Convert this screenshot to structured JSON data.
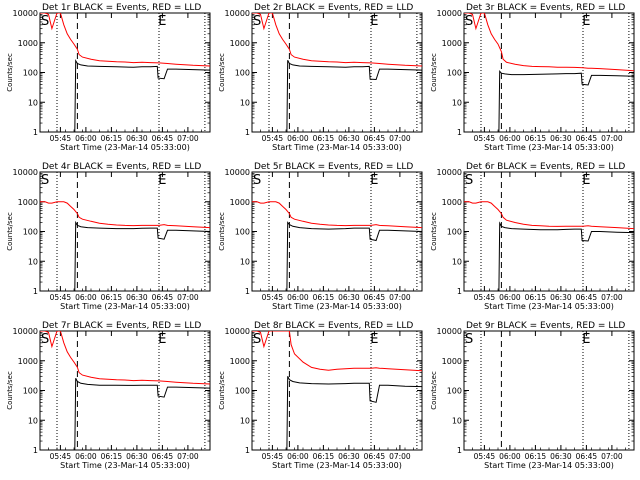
{
  "figure": {
    "tick_labels_x": [
      "05:45",
      "06:00",
      "06:15",
      "06:30",
      "06:45",
      "07:00"
    ],
    "tick_labels_y": [
      "1",
      "10",
      "100",
      "1000",
      "10000"
    ],
    "y_label": "Counts/sec",
    "x_label": "Start Time (23-Mar-14 05:33:00)",
    "marker_start": "S",
    "marker_end": "E",
    "colors": {
      "events": "#000000",
      "lld": "#ff0000",
      "axes": "#000000"
    }
  },
  "chart_data": [
    {
      "type": "line",
      "title": "Det 1r BLACK = Events, RED = LLD",
      "xlabel": "Start Time (23-Mar-14 05:33:00)",
      "ylabel": "Counts/sec",
      "x_unit": "minutes after 05:33:00",
      "yscale": "log",
      "xlim": [
        0,
        100
      ],
      "ylim": [
        1,
        10000
      ],
      "vlines": {
        "dotted": [
          10,
          70,
          97
        ],
        "dashed": [
          22
        ]
      },
      "markers": {
        "S": 0,
        "E": 69
      },
      "series": [
        {
          "name": "Events",
          "color": "#000000",
          "x": [
            20.5,
            21,
            22,
            24,
            28,
            35,
            45,
            55,
            60,
            65,
            69,
            69.5,
            73,
            75,
            80,
            90,
            100
          ],
          "y": [
            1,
            250,
            200,
            180,
            165,
            160,
            155,
            150,
            155,
            155,
            160,
            65,
            62,
            130,
            130,
            125,
            120
          ]
        },
        {
          "name": "LLD",
          "color": "#ff0000",
          "x": [
            0,
            3,
            5,
            7,
            10,
            12,
            14,
            16,
            18,
            20,
            22,
            23,
            25,
            30,
            35,
            40,
            45,
            50,
            55,
            60,
            65,
            70,
            73,
            75,
            80,
            90,
            100
          ],
          "y": [
            10000,
            10000,
            9000,
            3000,
            10000,
            10000,
            4000,
            2000,
            1300,
            900,
            600,
            400,
            330,
            280,
            250,
            240,
            230,
            225,
            215,
            220,
            215,
            210,
            205,
            200,
            190,
            175,
            165
          ]
        }
      ]
    },
    {
      "type": "line",
      "title": "Det 2r BLACK = Events, RED = LLD",
      "xlabel": "Start Time (23-Mar-14 05:33:00)",
      "ylabel": "Counts/sec",
      "x_unit": "minutes after 05:33:00",
      "yscale": "log",
      "xlim": [
        0,
        100
      ],
      "ylim": [
        1,
        10000
      ],
      "vlines": {
        "dotted": [
          10,
          70,
          97
        ],
        "dashed": [
          22
        ]
      },
      "markers": {
        "S": 0,
        "E": 69
      },
      "series": [
        {
          "name": "Events",
          "color": "#000000",
          "x": [
            20.5,
            21,
            22,
            24,
            28,
            35,
            45,
            55,
            60,
            65,
            69,
            69.5,
            73,
            75,
            80,
            90,
            100
          ],
          "y": [
            1,
            260,
            200,
            180,
            165,
            160,
            155,
            150,
            155,
            155,
            160,
            60,
            58,
            130,
            130,
            125,
            120
          ]
        },
        {
          "name": "LLD",
          "color": "#ff0000",
          "x": [
            0,
            3,
            5,
            7,
            10,
            12,
            14,
            16,
            18,
            20,
            22,
            23,
            25,
            30,
            35,
            40,
            45,
            50,
            55,
            60,
            65,
            70,
            73,
            75,
            80,
            90,
            100
          ],
          "y": [
            10000,
            10000,
            9000,
            3000,
            10000,
            10000,
            4000,
            2000,
            1300,
            900,
            600,
            400,
            330,
            280,
            250,
            240,
            230,
            225,
            215,
            220,
            215,
            210,
            205,
            200,
            190,
            175,
            165
          ]
        }
      ]
    },
    {
      "type": "line",
      "title": "Det 3r BLACK = Events, RED = LLD",
      "xlabel": "Start Time (23-Mar-14 05:33:00)",
      "ylabel": "Counts/sec",
      "x_unit": "minutes after 05:33:00",
      "yscale": "log",
      "xlim": [
        0,
        100
      ],
      "ylim": [
        1,
        10000
      ],
      "vlines": {
        "dotted": [
          10,
          70,
          97
        ],
        "dashed": [
          22
        ]
      },
      "markers": {
        "S": 0,
        "E": 69
      },
      "series": [
        {
          "name": "Events",
          "color": "#000000",
          "x": [
            20.5,
            21,
            22,
            24,
            28,
            35,
            45,
            55,
            60,
            65,
            69,
            69.5,
            73,
            75,
            80,
            90,
            100
          ],
          "y": [
            1,
            110,
            95,
            90,
            85,
            85,
            88,
            90,
            92,
            92,
            95,
            40,
            38,
            80,
            80,
            78,
            75
          ]
        },
        {
          "name": "LLD",
          "color": "#ff0000",
          "x": [
            0,
            3,
            5,
            7,
            10,
            12,
            14,
            16,
            18,
            20,
            22,
            23,
            25,
            30,
            35,
            40,
            45,
            50,
            55,
            60,
            65,
            70,
            73,
            75,
            80,
            90,
            100
          ],
          "y": [
            10000,
            10000,
            9000,
            3000,
            10000,
            10000,
            4000,
            2000,
            1300,
            900,
            500,
            280,
            220,
            190,
            170,
            160,
            158,
            155,
            150,
            150,
            148,
            145,
            140,
            138,
            135,
            125,
            115
          ]
        }
      ]
    },
    {
      "type": "line",
      "title": "Det 4r BLACK = Events, RED = LLD",
      "xlabel": "Start Time (23-Mar-14 05:33:00)",
      "ylabel": "Counts/sec",
      "x_unit": "minutes after 05:33:00",
      "yscale": "log",
      "xlim": [
        0,
        100
      ],
      "ylim": [
        1,
        10000
      ],
      "vlines": {
        "dotted": [
          10,
          70,
          97
        ],
        "dashed": [
          22
        ]
      },
      "markers": {
        "S": 0,
        "E": 69
      },
      "series": [
        {
          "name": "Events",
          "color": "#000000",
          "x": [
            20.5,
            21,
            22,
            24,
            28,
            35,
            45,
            55,
            60,
            65,
            69,
            69.5,
            73,
            75,
            80,
            90,
            100
          ],
          "y": [
            1,
            200,
            160,
            145,
            135,
            130,
            125,
            125,
            128,
            130,
            130,
            60,
            55,
            110,
            110,
            105,
            100
          ]
        },
        {
          "name": "LLD",
          "color": "#ff0000",
          "x": [
            0,
            3,
            5,
            7,
            10,
            12,
            14,
            16,
            18,
            20,
            22,
            23,
            25,
            30,
            35,
            40,
            45,
            50,
            55,
            60,
            65,
            70,
            73,
            75,
            80,
            90,
            100
          ],
          "y": [
            1000,
            1000,
            900,
            900,
            1000,
            1000,
            1000,
            900,
            700,
            550,
            400,
            300,
            260,
            220,
            190,
            175,
            165,
            160,
            158,
            160,
            160,
            160,
            170,
            160,
            155,
            145,
            135
          ]
        }
      ]
    },
    {
      "type": "line",
      "title": "Det 5r BLACK = Events, RED = LLD",
      "xlabel": "Start Time (23-Mar-14 05:33:00)",
      "ylabel": "Counts/sec",
      "x_unit": "minutes after 05:33:00",
      "yscale": "log",
      "xlim": [
        0,
        100
      ],
      "ylim": [
        1,
        10000
      ],
      "vlines": {
        "dotted": [
          10,
          70,
          97
        ],
        "dashed": [
          22
        ]
      },
      "markers": {
        "S": 0,
        "E": 69
      },
      "series": [
        {
          "name": "Events",
          "color": "#000000",
          "x": [
            20.5,
            21,
            22,
            24,
            28,
            35,
            45,
            55,
            60,
            65,
            69,
            69.5,
            73,
            75,
            80,
            90,
            100
          ],
          "y": [
            1,
            200,
            170,
            150,
            135,
            125,
            120,
            125,
            130,
            130,
            130,
            55,
            50,
            110,
            110,
            105,
            100
          ]
        },
        {
          "name": "LLD",
          "color": "#ff0000",
          "x": [
            0,
            3,
            5,
            7,
            10,
            12,
            14,
            16,
            18,
            20,
            22,
            23,
            25,
            30,
            35,
            40,
            45,
            50,
            55,
            60,
            65,
            70,
            73,
            75,
            80,
            90,
            100
          ],
          "y": [
            1000,
            1000,
            900,
            900,
            1000,
            1000,
            1000,
            900,
            700,
            550,
            400,
            300,
            260,
            220,
            190,
            175,
            165,
            160,
            158,
            160,
            160,
            160,
            170,
            160,
            155,
            145,
            135
          ]
        }
      ]
    },
    {
      "type": "line",
      "title": "Det 6r BLACK = Events, RED = LLD",
      "xlabel": "Start Time (23-Mar-14 05:33:00)",
      "ylabel": "Counts/sec",
      "x_unit": "minutes after 05:33:00",
      "yscale": "log",
      "xlim": [
        0,
        100
      ],
      "ylim": [
        1,
        10000
      ],
      "vlines": {
        "dotted": [
          10,
          70,
          97
        ],
        "dashed": [
          22
        ]
      },
      "markers": {
        "S": 0,
        "E": 69
      },
      "series": [
        {
          "name": "Events",
          "color": "#000000",
          "x": [
            20.5,
            21,
            22,
            24,
            28,
            35,
            45,
            55,
            60,
            65,
            69,
            69.5,
            73,
            75,
            80,
            90,
            100
          ],
          "y": [
            1,
            190,
            150,
            135,
            125,
            120,
            115,
            115,
            118,
            120,
            120,
            50,
            48,
            100,
            100,
            95,
            92
          ]
        },
        {
          "name": "LLD",
          "color": "#ff0000",
          "x": [
            0,
            3,
            5,
            7,
            10,
            12,
            14,
            16,
            18,
            20,
            22,
            23,
            25,
            30,
            35,
            40,
            45,
            50,
            55,
            60,
            65,
            70,
            73,
            75,
            80,
            90,
            100
          ],
          "y": [
            1000,
            1000,
            900,
            900,
            1000,
            1000,
            1000,
            900,
            700,
            550,
            400,
            300,
            240,
            200,
            175,
            160,
            155,
            150,
            148,
            150,
            150,
            150,
            155,
            150,
            145,
            135,
            125
          ]
        }
      ]
    },
    {
      "type": "line",
      "title": "Det 7r BLACK = Events, RED = LLD",
      "xlabel": "Start Time (23-Mar-14 05:33:00)",
      "ylabel": "Counts/sec",
      "x_unit": "minutes after 05:33:00",
      "yscale": "log",
      "xlim": [
        0,
        100
      ],
      "ylim": [
        1,
        10000
      ],
      "vlines": {
        "dotted": [
          10,
          70,
          97
        ],
        "dashed": [
          22
        ]
      },
      "markers": {
        "S": 0,
        "E": 69
      },
      "series": [
        {
          "name": "Events",
          "color": "#000000",
          "x": [
            20.5,
            21,
            22,
            24,
            28,
            35,
            45,
            55,
            60,
            65,
            69,
            69.5,
            73,
            75,
            80,
            90,
            100
          ],
          "y": [
            1,
            260,
            200,
            175,
            160,
            150,
            150,
            148,
            150,
            150,
            150,
            65,
            60,
            130,
            130,
            125,
            120
          ]
        },
        {
          "name": "LLD",
          "color": "#ff0000",
          "x": [
            0,
            3,
            5,
            7,
            10,
            12,
            14,
            16,
            18,
            20,
            22,
            23,
            25,
            30,
            35,
            40,
            45,
            50,
            55,
            60,
            65,
            70,
            73,
            75,
            80,
            90,
            100
          ],
          "y": [
            10000,
            10000,
            9000,
            3000,
            10000,
            10000,
            4000,
            2000,
            1300,
            900,
            600,
            400,
            330,
            280,
            250,
            240,
            230,
            225,
            215,
            220,
            215,
            210,
            205,
            200,
            190,
            175,
            165
          ]
        }
      ]
    },
    {
      "type": "line",
      "title": "Det 8r BLACK = Events, RED = LLD",
      "xlabel": "Start Time (23-Mar-14 05:33:00)",
      "ylabel": "Counts/sec",
      "x_unit": "minutes after 05:33:00",
      "yscale": "log",
      "xlim": [
        0,
        100
      ],
      "ylim": [
        1,
        10000
      ],
      "vlines": {
        "dotted": [
          10,
          70,
          97
        ],
        "dashed": [
          22
        ]
      },
      "markers": {
        "S": 0,
        "E": 69
      },
      "series": [
        {
          "name": "Events",
          "color": "#000000",
          "x": [
            20.5,
            21,
            22,
            24,
            28,
            35,
            45,
            55,
            60,
            65,
            69,
            69.5,
            73,
            75,
            80,
            90,
            100
          ],
          "y": [
            1,
            300,
            230,
            200,
            180,
            170,
            165,
            170,
            175,
            175,
            175,
            45,
            40,
            150,
            150,
            140,
            135
          ]
        },
        {
          "name": "LLD",
          "color": "#ff0000",
          "x": [
            0,
            3,
            5,
            7,
            10,
            12,
            14,
            16,
            18,
            20,
            22,
            23,
            25,
            30,
            35,
            40,
            45,
            50,
            55,
            60,
            65,
            70,
            73,
            75,
            80,
            90,
            100
          ],
          "y": [
            10000,
            10000,
            9000,
            3000,
            10000,
            10000,
            10000,
            10000,
            10000,
            10000,
            10000,
            3500,
            1700,
            900,
            600,
            520,
            480,
            520,
            540,
            560,
            560,
            560,
            580,
            560,
            540,
            500,
            460
          ]
        }
      ]
    },
    {
      "type": "line",
      "title": "Det 9r BLACK = Events, RED = LLD",
      "xlabel": "Start Time (23-Mar-14 05:33:00)",
      "ylabel": "Counts/sec",
      "x_unit": "minutes after 05:33:00",
      "yscale": "log",
      "xlim": [
        0,
        100
      ],
      "ylim": [
        1,
        10000
      ],
      "vlines": {
        "dotted": [
          10,
          70,
          97
        ],
        "dashed": [
          22
        ]
      },
      "markers": {
        "S": 0,
        "E": 69
      },
      "series": []
    }
  ]
}
